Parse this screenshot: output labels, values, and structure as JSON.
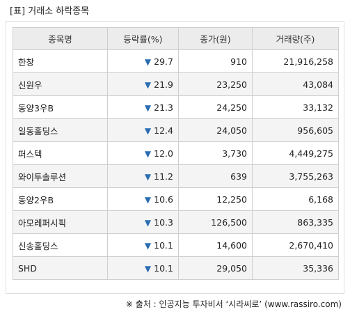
{
  "title": "[표] 거래소 하락종목",
  "table": {
    "headers": [
      "종목명",
      "등락률(%)",
      "종가(원)",
      "거래량(주)"
    ],
    "down_symbol": "▼",
    "rows": [
      {
        "name": "한창",
        "rate": "29.7",
        "close": "910",
        "volume": "21,916,258"
      },
      {
        "name": "신원우",
        "rate": "21.9",
        "close": "23,250",
        "volume": "43,084"
      },
      {
        "name": "동양3우B",
        "rate": "21.3",
        "close": "24,250",
        "volume": "33,132"
      },
      {
        "name": "일동홀딩스",
        "rate": "12.4",
        "close": "24,050",
        "volume": "956,605"
      },
      {
        "name": "퍼스텍",
        "rate": "12.0",
        "close": "3,730",
        "volume": "4,449,275"
      },
      {
        "name": "와이투솔루션",
        "rate": "11.2",
        "close": "639",
        "volume": "3,755,263"
      },
      {
        "name": "동양2우B",
        "rate": "10.6",
        "close": "12,250",
        "volume": "6,168"
      },
      {
        "name": "아모레퍼시픽",
        "rate": "10.3",
        "close": "126,500",
        "volume": "863,335"
      },
      {
        "name": "신송홀딩스",
        "rate": "10.1",
        "close": "14,600",
        "volume": "2,670,410"
      },
      {
        "name": "SHD",
        "rate": "10.1",
        "close": "29,050",
        "volume": "35,336"
      }
    ]
  },
  "source": "※ 출처 : 인공지능 투자비서 ‘시라씨로’ (www.rassiro.com)",
  "colors": {
    "header_bg": "#ececec",
    "alt_row_bg": "#f4f4f4",
    "down_blue": "#2a6db3",
    "border": "#cfcfcf"
  }
}
